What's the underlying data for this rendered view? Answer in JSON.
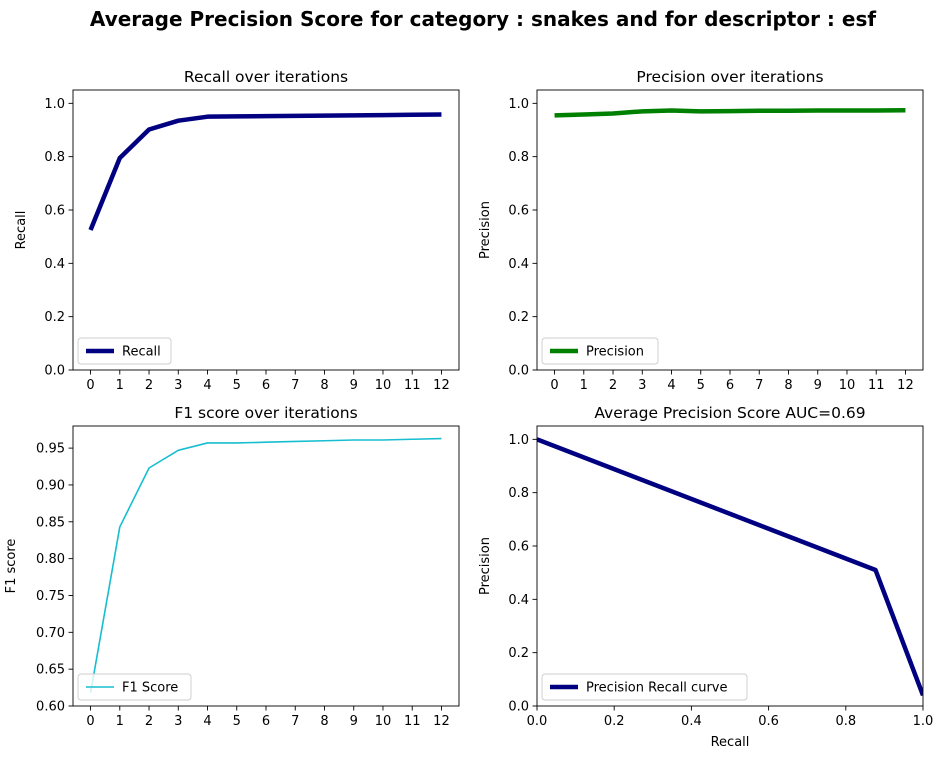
{
  "figure": {
    "title": "Average Precision Score for category : snakes and for descriptor : esf"
  },
  "chart_data": [
    {
      "id": "recall",
      "type": "line",
      "title": "Recall over iterations",
      "xlabel": "",
      "ylabel": "Recall",
      "xlim": [
        -0.6,
        12.6
      ],
      "ylim": [
        0.0,
        1.05
      ],
      "xticks": [
        0,
        1,
        2,
        3,
        4,
        5,
        6,
        7,
        8,
        9,
        10,
        11,
        12
      ],
      "xtick_labels": [
        "0",
        "1",
        "2",
        "3",
        "4",
        "5",
        "6",
        "7",
        "8",
        "9",
        "10",
        "11",
        "12"
      ],
      "yticks": [
        0.0,
        0.2,
        0.4,
        0.6,
        0.8,
        1.0
      ],
      "ytick_labels": [
        "0.0",
        "0.2",
        "0.4",
        "0.6",
        "0.8",
        "1.0"
      ],
      "legend_position": "lower-left",
      "grid": false,
      "series": [
        {
          "name": "Recall",
          "color": "#000080",
          "x": [
            0,
            1,
            2,
            3,
            4,
            5,
            6,
            7,
            8,
            9,
            10,
            11,
            12
          ],
          "y": [
            0.525,
            0.795,
            0.902,
            0.935,
            0.95,
            0.951,
            0.952,
            0.953,
            0.954,
            0.955,
            0.956,
            0.957,
            0.958
          ]
        }
      ]
    },
    {
      "id": "precision",
      "type": "line",
      "title": "Precision over iterations",
      "xlabel": "",
      "ylabel": "Precision",
      "xlim": [
        -0.6,
        12.6
      ],
      "ylim": [
        0.0,
        1.05
      ],
      "xticks": [
        0,
        1,
        2,
        3,
        4,
        5,
        6,
        7,
        8,
        9,
        10,
        11,
        12
      ],
      "xtick_labels": [
        "0",
        "1",
        "2",
        "3",
        "4",
        "5",
        "6",
        "7",
        "8",
        "9",
        "10",
        "11",
        "12"
      ],
      "yticks": [
        0.0,
        0.2,
        0.4,
        0.6,
        0.8,
        1.0
      ],
      "ytick_labels": [
        "0.0",
        "0.2",
        "0.4",
        "0.6",
        "0.8",
        "1.0"
      ],
      "legend_position": "lower-left",
      "grid": false,
      "series": [
        {
          "name": "Precision",
          "color": "#008000",
          "x": [
            0,
            1,
            2,
            3,
            4,
            5,
            6,
            7,
            8,
            9,
            10,
            11,
            12
          ],
          "y": [
            0.955,
            0.958,
            0.962,
            0.97,
            0.973,
            0.97,
            0.971,
            0.972,
            0.972,
            0.973,
            0.973,
            0.973,
            0.974
          ]
        }
      ]
    },
    {
      "id": "f1",
      "type": "line",
      "title": "F1 score over iterations",
      "xlabel": "",
      "ylabel": "F1 score",
      "xlim": [
        -0.6,
        12.6
      ],
      "ylim": [
        0.6,
        0.98
      ],
      "xticks": [
        0,
        1,
        2,
        3,
        4,
        5,
        6,
        7,
        8,
        9,
        10,
        11,
        12
      ],
      "xtick_labels": [
        "0",
        "1",
        "2",
        "3",
        "4",
        "5",
        "6",
        "7",
        "8",
        "9",
        "10",
        "11",
        "12"
      ],
      "yticks": [
        0.6,
        0.65,
        0.7,
        0.75,
        0.8,
        0.85,
        0.9,
        0.95
      ],
      "ytick_labels": [
        "0.60",
        "0.65",
        "0.70",
        "0.75",
        "0.80",
        "0.85",
        "0.90",
        "0.95"
      ],
      "legend_position": "lower-left",
      "grid": false,
      "series": [
        {
          "name": "F1 Score",
          "color": "#17becf",
          "x": [
            0,
            1,
            2,
            3,
            4,
            5,
            6,
            7,
            8,
            9,
            10,
            11,
            12
          ],
          "y": [
            0.618,
            0.843,
            0.923,
            0.947,
            0.957,
            0.957,
            0.958,
            0.959,
            0.96,
            0.961,
            0.961,
            0.962,
            0.963
          ]
        }
      ]
    },
    {
      "id": "pr_curve",
      "type": "line",
      "title": "Average Precision Score AUC=0.69",
      "xlabel": "Recall",
      "ylabel": "Precision",
      "xlim": [
        0.0,
        1.0
      ],
      "ylim": [
        0.0,
        1.05
      ],
      "xticks": [
        0.0,
        0.2,
        0.4,
        0.6,
        0.8,
        1.0
      ],
      "xtick_labels": [
        "0.0",
        "0.2",
        "0.4",
        "0.6",
        "0.8",
        "1.0"
      ],
      "yticks": [
        0.0,
        0.2,
        0.4,
        0.6,
        0.8,
        1.0
      ],
      "ytick_labels": [
        "0.0",
        "0.2",
        "0.4",
        "0.6",
        "0.8",
        "1.0"
      ],
      "legend_position": "lower-left",
      "grid": false,
      "series": [
        {
          "name": "Precision Recall curve",
          "color": "#000080",
          "x": [
            0.0,
            0.877,
            1.0
          ],
          "y": [
            1.0,
            0.51,
            0.04
          ]
        }
      ]
    }
  ]
}
